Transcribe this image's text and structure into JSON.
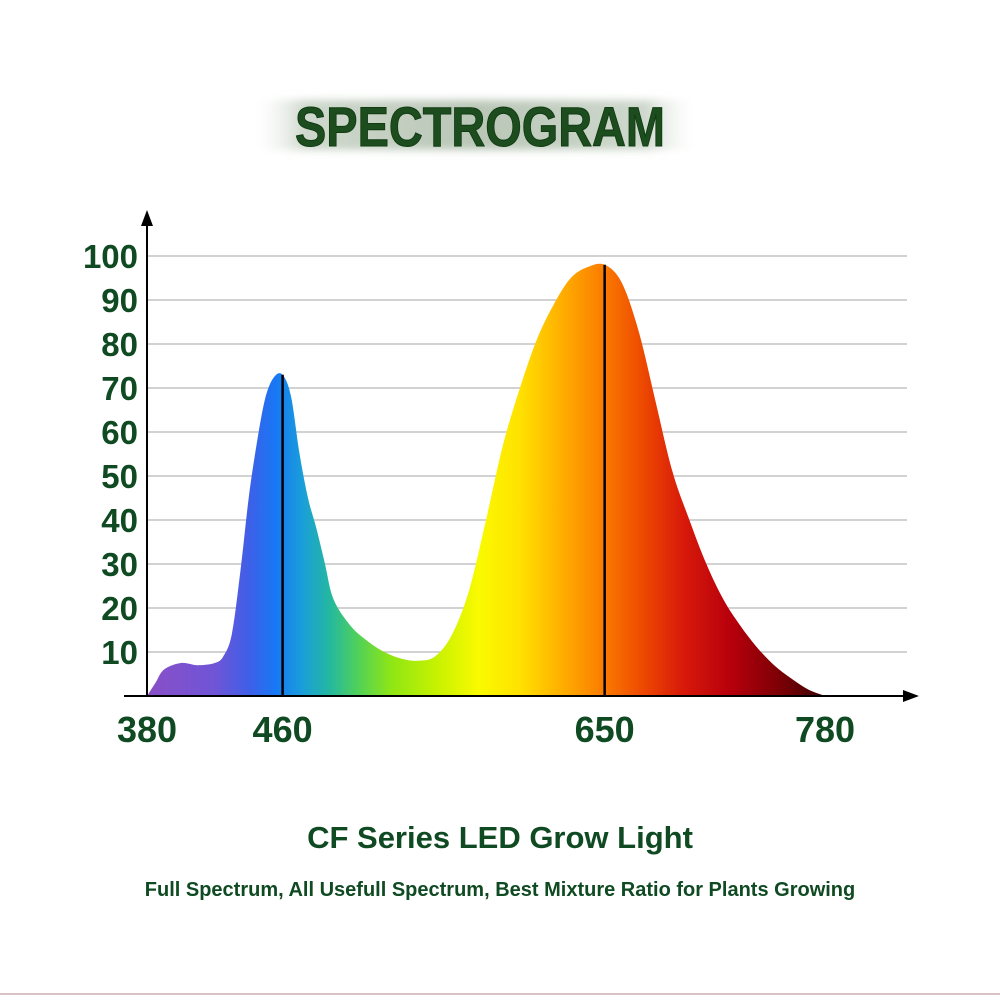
{
  "header": {
    "title": "SPECTROGRAM"
  },
  "footer": {
    "product": "CF Series LED Grow Light",
    "tagline": "Full Spectrum, All Usefull Spectrum, Best Mixture Ratio for Plants Growing"
  },
  "colors": {
    "text_green": "#0f4a22",
    "title_green": "#1d4d1e",
    "grid": "#c4c4c4",
    "axis": "#000000"
  },
  "chart_data": {
    "type": "area",
    "title": "SPECTROGRAM",
    "xlabel": "",
    "ylabel": "",
    "x_ticks": [
      380,
      460,
      650,
      780
    ],
    "y_ticks": [
      10,
      20,
      30,
      40,
      50,
      60,
      70,
      80,
      90,
      100
    ],
    "xlim": [
      380,
      780
    ],
    "ylim": [
      0,
      100
    ],
    "grid": true,
    "peaks": [
      {
        "x": 460,
        "y": 73
      },
      {
        "x": 650,
        "y": 98
      }
    ],
    "series": [
      {
        "x": [
          380,
          385,
          390,
          400,
          410,
          420,
          425,
          430,
          435,
          440,
          445,
          450,
          455,
          460,
          465,
          470,
          475,
          480,
          485,
          490,
          500,
          510,
          520,
          530,
          540,
          550,
          560,
          570,
          580,
          590,
          600,
          610,
          620,
          630,
          640,
          650,
          660,
          670,
          680,
          690,
          700,
          710,
          720,
          730,
          740,
          750,
          760,
          770,
          780
        ],
        "values": [
          0,
          3,
          6,
          7.5,
          7,
          7.5,
          9,
          14,
          28,
          45,
          58,
          68,
          72.5,
          73,
          68,
          55,
          45,
          38,
          30,
          22,
          16,
          12.5,
          10,
          8.5,
          8,
          9,
          14,
          24,
          40,
          57,
          70,
          81,
          89,
          95,
          97.5,
          98,
          94,
          83,
          67,
          51,
          40,
          30,
          22,
          16,
          11,
          7,
          4,
          1.5,
          0
        ]
      }
    ]
  }
}
